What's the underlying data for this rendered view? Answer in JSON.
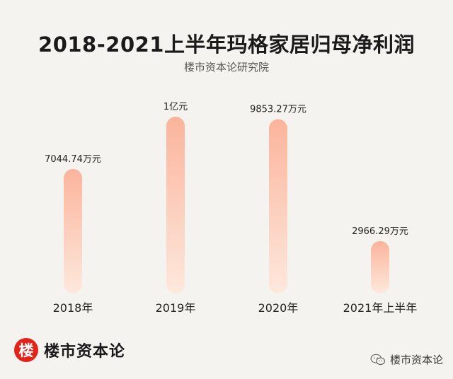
{
  "header": {
    "title": "2018-2021上半年玛格家居归母净利润",
    "subtitle": "楼市资本论研究院"
  },
  "chart_data": {
    "type": "bar",
    "title": "2018-2021上半年玛格家居归母净利润",
    "categories": [
      "2018年",
      "2019年",
      "2020年",
      "2021年上半年"
    ],
    "values": [
      7044.74,
      10000,
      9853.27,
      2966.29
    ],
    "data_labels": [
      "7044.74万元",
      "1亿元",
      "9853.27万元",
      "2966.29万元"
    ],
    "unit": "万元",
    "ylim": [
      0,
      10000
    ],
    "grid": false,
    "bar_colors": {
      "top": "#fbb49c",
      "bottom": "#fde8dc"
    }
  },
  "footer": {
    "logo_badge": "楼",
    "logo_text": "楼市资本论",
    "wechat_icon": "wechat-icon",
    "wechat_text": "楼市资本论"
  }
}
